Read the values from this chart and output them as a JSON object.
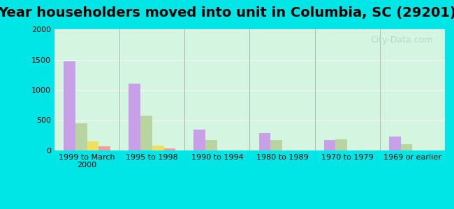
{
  "title": "Year householders moved into unit in Columbia, SC (29201)",
  "categories": [
    "1999 to March\n2000",
    "1995 to 1998",
    "1990 to 1994",
    "1980 to 1989",
    "1970 to 1979",
    "1969 or earlier"
  ],
  "series": {
    "White Non-Hispanic": [
      1470,
      1100,
      340,
      290,
      170,
      230
    ],
    "Black": [
      450,
      580,
      175,
      170,
      180,
      100
    ],
    "Asian": [
      155,
      80,
      0,
      0,
      0,
      0
    ],
    "Hispanic or Latino": [
      70,
      30,
      0,
      0,
      0,
      0
    ]
  },
  "colors": {
    "White Non-Hispanic": "#c8a0e8",
    "Black": "#b8d4a0",
    "Asian": "#f0e060",
    "Hispanic or Latino": "#f0a0a0"
  },
  "ylim": [
    0,
    2000
  ],
  "yticks": [
    0,
    500,
    1000,
    1500,
    2000
  ],
  "background_color": "#d4f5e0",
  "outer_background": "#00e5e5",
  "watermark": "City-Data.com",
  "bar_width": 0.18,
  "title_fontsize": 14
}
